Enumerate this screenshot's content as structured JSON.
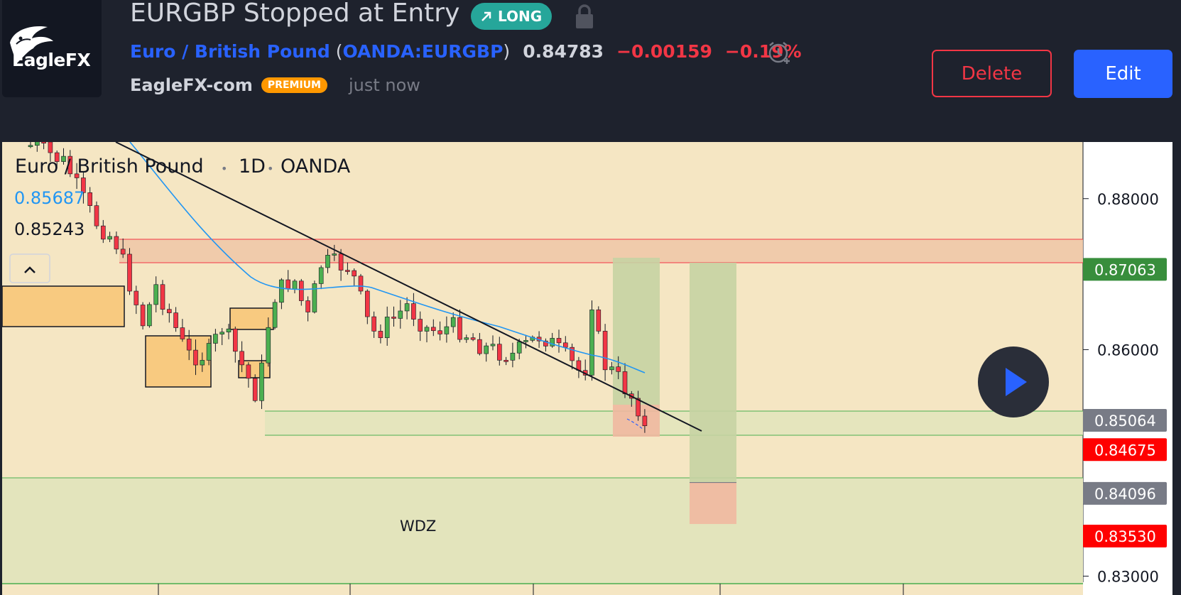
{
  "header": {
    "logo_text": "EagleFX",
    "title": "EURGBP Stopped at Entry",
    "direction_badge": "LONG",
    "symbol_name": "Euro / British Pound",
    "symbol_code": "OANDA:EURGBP",
    "last_price": "0.84783",
    "change": "−0.00159",
    "change_percent": "−0.19%",
    "author": "EagleFX-com",
    "author_badge": "PREMIUM",
    "published": "just now",
    "delete_label": "Delete",
    "edit_label": "Edit"
  },
  "colors": {
    "bg_dark": "#1e222d",
    "accent_blue": "#2962ff",
    "down_red": "#f23645",
    "long_green": "#26a69a",
    "premium_orange": "#ff9800",
    "chart_bg": "#f5e6c3"
  },
  "chart": {
    "legend_title": "Euro / British Pound",
    "legend_interval": "1D",
    "legend_exchange": "OANDA",
    "ma_value": "0.85687",
    "price_value": "0.85243",
    "collapse_icon": "chevron-up-icon",
    "zone_label": "WDZ",
    "play_icon": "play-icon"
  },
  "chart_data": {
    "type": "candlestick",
    "symbol": "EURGBP",
    "interval": "1D",
    "exchange": "OANDA",
    "ylim": [
      0.8275,
      0.8875
    ],
    "axis_ticks": [
      "0.88000",
      "0.86000",
      "0.83000"
    ],
    "price_labels": [
      {
        "value": 0.87063,
        "label": "0.87063",
        "color": "#388e3c"
      },
      {
        "value": 0.85064,
        "label": "0.85064",
        "color": "#787b86"
      },
      {
        "value": 0.84675,
        "label": "0.84675",
        "color": "#ff0000"
      },
      {
        "value": 0.84096,
        "label": "0.84096",
        "color": "#787b86"
      },
      {
        "value": 0.8353,
        "label": "0.83530",
        "color": "#ff0000"
      }
    ],
    "annotations": [
      "WDZ"
    ],
    "position": {
      "type": "long",
      "entry": 0.84096,
      "target": 0.87063,
      "stop": 0.8353
    }
  }
}
